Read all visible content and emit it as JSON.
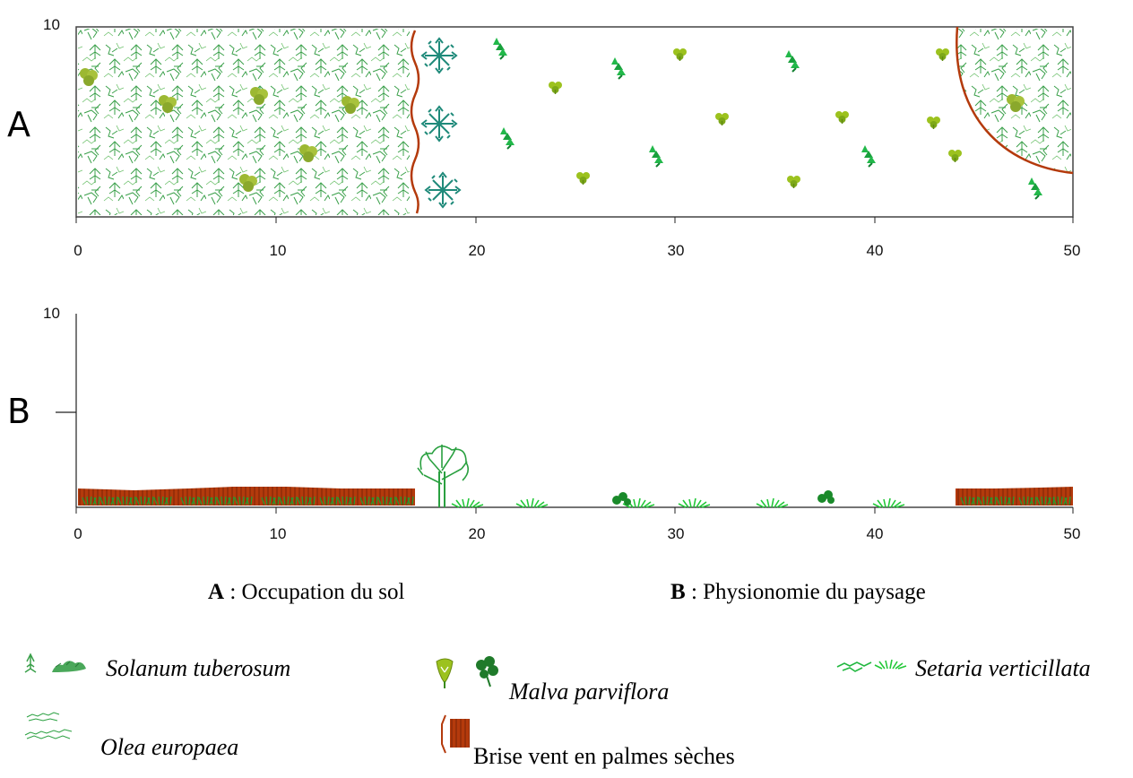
{
  "panel_a": {
    "letter": "A",
    "y_tick": "10",
    "x_ticks": [
      "0",
      "10",
      "20",
      "30",
      "40",
      "50"
    ]
  },
  "panel_b": {
    "letter": "B",
    "y_tick": "10",
    "x_ticks": [
      "0",
      "10",
      "20",
      "30",
      "40",
      "50"
    ]
  },
  "captions": {
    "a_bold": "A",
    "a_text": " : Occupation du sol",
    "b_bold": "B",
    "b_text": " : Physionomie du paysage"
  },
  "legend": {
    "solanum": "Solanum tuberosum",
    "malva": "Malva parviflora",
    "setaria": "Setaria verticillata",
    "olea": "Olea europaea",
    "brise": "Brise vent en palmes sèches"
  },
  "colors": {
    "potato_green": "#3aa04a",
    "olive_teal": "#1f8a7a",
    "malva_yellow": "#9cc21e",
    "setaria_green": "#22c838",
    "windbreak_brown": "#b43a0c"
  },
  "icons": [
    "potato-plant-icon",
    "olive-tree-icon",
    "malva-icon",
    "setaria-icon",
    "windbreak-icon"
  ]
}
